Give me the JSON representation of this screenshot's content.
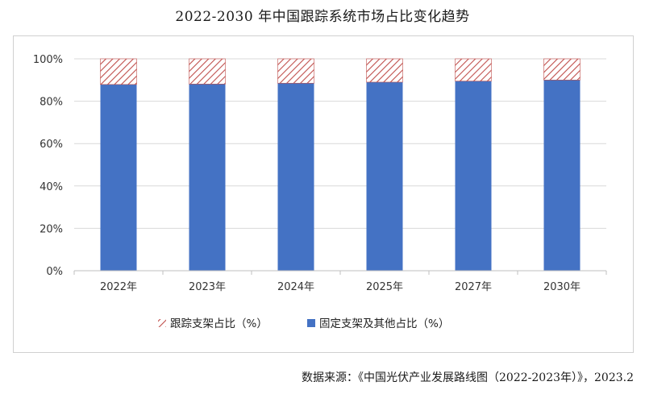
{
  "title": "2022-2030 年中国跟踪系统市场占比变化趋势",
  "source": "数据来源：《中国光伏产业发展路线图（2022-2023年）》，2023.2",
  "colors": {
    "fixed": "#4472C4",
    "tracking_hatch": "#C0504D",
    "grid": "#d9d9d9",
    "axis": "#bfbfbf"
  },
  "chart_data": {
    "type": "bar",
    "stacked": true,
    "categories": [
      "2022年",
      "2023年",
      "2024年",
      "2025年",
      "2027年",
      "2030年"
    ],
    "series": [
      {
        "name": "固定支架及其他占比（%）",
        "values": [
          87.9,
          88.1,
          88.5,
          89.0,
          89.5,
          90.0
        ],
        "pattern": "solid"
      },
      {
        "name": "跟踪支架占比（%）",
        "values": [
          12.1,
          11.9,
          11.5,
          11.0,
          10.5,
          10.0
        ],
        "pattern": "hatch"
      }
    ],
    "ylim": [
      0,
      100
    ],
    "yticks": [
      "0%",
      "20%",
      "40%",
      "60%",
      "80%",
      "100%"
    ],
    "grid": true,
    "legend_position": "bottom",
    "legend_order": [
      "跟踪支架占比（%）",
      "固定支架及其他占比（%）"
    ]
  }
}
